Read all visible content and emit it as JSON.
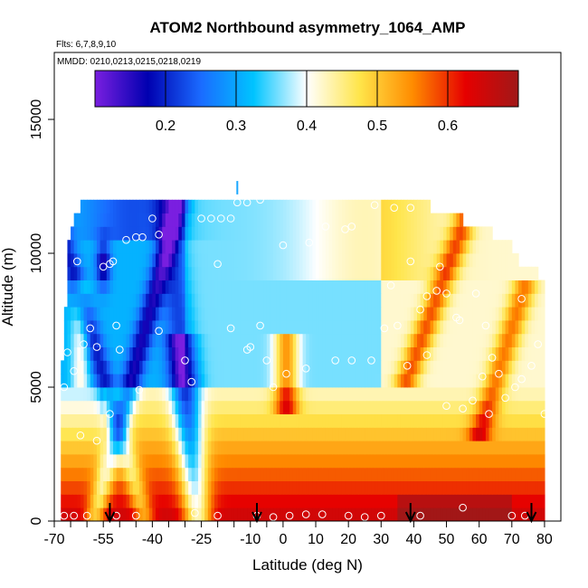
{
  "chart_data": {
    "type": "heatmap",
    "title": "ATOM2 Northbound asymmetry_1064_AMP",
    "subtitle_flights": "Flts: 6,7,8,9,10",
    "subtitle_dates": "MMDD: 0210,0213,0215,0218,0219",
    "xlabel": "Latitude (deg N)",
    "ylabel": "Altitude (m)",
    "xlim": [
      -70,
      85
    ],
    "ylim": [
      0,
      17500
    ],
    "x_ticks": [
      -70,
      -55,
      -40,
      -25,
      -10,
      0,
      10,
      20,
      30,
      40,
      50,
      60,
      70,
      80
    ],
    "x_tick_labels": [
      "-70",
      "-55",
      "-40",
      "-25",
      "-10",
      "0",
      "10",
      "20",
      "30",
      "40",
      "50",
      "60",
      "70",
      "80"
    ],
    "x_minor_ticks": [
      -65,
      -60,
      -50,
      -45,
      -35,
      -30,
      -20,
      -15,
      -5
    ],
    "y_ticks": [
      0,
      5000,
      10000,
      15000
    ],
    "y_tick_labels": [
      "0",
      "5000",
      "10000",
      "15000"
    ],
    "colorbar": {
      "range": [
        0.1,
        0.7
      ],
      "ticks": [
        0.2,
        0.3,
        0.4,
        0.5,
        0.6
      ],
      "tick_labels": [
        "0.2",
        "0.3",
        "0.4",
        "0.5",
        "0.6"
      ],
      "colors": [
        "#7a1fe0",
        "#0000b0",
        "#1a6bff",
        "#00c4ff",
        "#ffffff",
        "#ffe54a",
        "#ff8c00",
        "#e60000",
        "#a01818"
      ]
    },
    "grid": false,
    "altitude_bin_edges": [
      0,
      500,
      1000,
      1500,
      2000,
      2500,
      3000,
      3500,
      4000,
      4500,
      5000,
      5500,
      6000,
      6500,
      7000,
      7500,
      8000,
      8500,
      9000,
      9500,
      10000,
      10500,
      11000,
      11500,
      12000
    ],
    "row_extents": [
      [
        -68,
        80
      ],
      [
        -68,
        80
      ],
      [
        -68,
        80
      ],
      [
        -68,
        80
      ],
      [
        -68,
        80
      ],
      [
        -68,
        80
      ],
      [
        -68,
        80
      ],
      [
        -68,
        80
      ],
      [
        -68,
        80
      ],
      [
        -68,
        80
      ],
      [
        -68,
        80
      ],
      [
        -68,
        80
      ],
      [
        -67,
        80
      ],
      [
        -67,
        80
      ],
      [
        -67,
        80
      ],
      [
        -67,
        80
      ],
      [
        -66,
        80
      ],
      [
        -66,
        80
      ],
      [
        -66,
        78
      ],
      [
        -66,
        72
      ],
      [
        -66,
        70
      ],
      [
        -65,
        64
      ],
      [
        -64,
        55
      ],
      [
        -62,
        45
      ]
    ],
    "column_arrows_lat": [
      -53,
      -8,
      39,
      76
    ],
    "points": [
      [
        -67,
        200
      ],
      [
        -64,
        200
      ],
      [
        -60,
        200
      ],
      [
        -51,
        200
      ],
      [
        -45,
        200
      ],
      [
        -27,
        300
      ],
      [
        -20,
        200
      ],
      [
        -8,
        200
      ],
      [
        -3,
        150
      ],
      [
        2,
        200
      ],
      [
        7,
        250
      ],
      [
        12,
        250
      ],
      [
        20,
        200
      ],
      [
        25,
        150
      ],
      [
        30,
        200
      ],
      [
        42,
        200
      ],
      [
        55,
        500
      ],
      [
        70,
        200
      ],
      [
        74,
        200
      ],
      [
        -67,
        5000
      ],
      [
        -44,
        4900
      ],
      [
        -28,
        5200
      ],
      [
        -3,
        5000
      ],
      [
        1,
        5500
      ],
      [
        -64,
        5600
      ],
      [
        -38,
        7100
      ],
      [
        -16,
        7200
      ],
      [
        -7,
        7300
      ],
      [
        -59,
        7200
      ],
      [
        -51,
        7300
      ],
      [
        -30,
        6000
      ],
      [
        -10,
        6500
      ],
      [
        -66,
        6300
      ],
      [
        -61,
        6600
      ],
      [
        -57,
        6500
      ],
      [
        -50,
        6400
      ],
      [
        -11,
        6400
      ],
      [
        -5,
        6000
      ],
      [
        7,
        5700
      ],
      [
        16,
        6000
      ],
      [
        21,
        6000
      ],
      [
        27,
        6000
      ],
      [
        31,
        7200
      ],
      [
        35,
        7300
      ],
      [
        38,
        5800
      ],
      [
        44,
        6200
      ],
      [
        50,
        4300
      ],
      [
        55,
        4200
      ],
      [
        58,
        4500
      ],
      [
        63,
        4000
      ],
      [
        68,
        4600
      ],
      [
        71,
        5000
      ],
      [
        73,
        5300
      ],
      [
        76,
        5800
      ],
      [
        78,
        6600
      ],
      [
        64,
        6100
      ],
      [
        66,
        5500
      ],
      [
        61,
        5400
      ],
      [
        53,
        7600
      ],
      [
        47,
        8600
      ],
      [
        42,
        7900
      ],
      [
        44,
        8400
      ],
      [
        33,
        8800
      ],
      [
        54,
        7500
      ],
      [
        48,
        9500
      ],
      [
        39,
        9700
      ],
      [
        -53,
        9600
      ],
      [
        -52,
        9700
      ],
      [
        -55,
        9500
      ],
      [
        -20,
        9600
      ],
      [
        0,
        10300
      ],
      [
        8,
        10400
      ],
      [
        13,
        11000
      ],
      [
        19,
        10900
      ],
      [
        21,
        11000
      ],
      [
        -48,
        10500
      ],
      [
        -45,
        10600
      ],
      [
        -43,
        10600
      ],
      [
        -38,
        10700
      ],
      [
        -25,
        11300
      ],
      [
        -22,
        11300
      ],
      [
        -19,
        11300
      ],
      [
        -16,
        11300
      ],
      [
        -14,
        11900
      ],
      [
        -11,
        11900
      ],
      [
        -40,
        11300
      ],
      [
        -7,
        12000
      ],
      [
        28,
        11800
      ],
      [
        34,
        11700
      ],
      [
        39,
        11700
      ],
      [
        -63,
        9700
      ],
      [
        50,
        8500
      ],
      [
        59,
        8500
      ],
      [
        62,
        7300
      ],
      [
        73,
        8300
      ],
      [
        80,
        4000
      ],
      [
        -53,
        4000
      ],
      [
        -62,
        3200
      ],
      [
        -57,
        3000
      ]
    ]
  }
}
